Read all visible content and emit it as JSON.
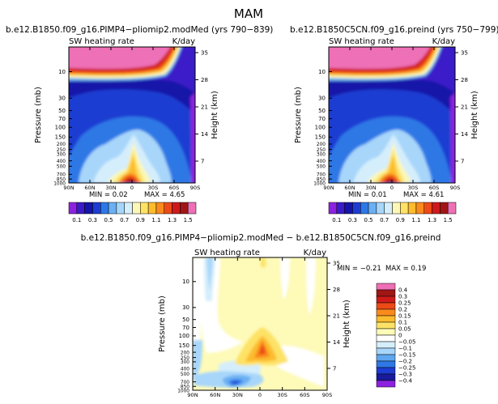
{
  "page": {
    "title": "MAM"
  },
  "colors": {
    "seq": [
      "#8c22e0",
      "#3a1bc8",
      "#1414a8",
      "#1e3cd2",
      "#2e78e6",
      "#6ab0f2",
      "#a7d6fa",
      "#d5eefc",
      "#fbf7b8",
      "#fde266",
      "#fdbb2e",
      "#f98a1c",
      "#ec4a16",
      "#ce1a1a",
      "#a01616",
      "#ee6fb6"
    ],
    "diff": [
      "#8c22e0",
      "#1a1a9c",
      "#1e3cd2",
      "#2e78e6",
      "#5ea6f0",
      "#a7d6fa",
      "#d5eefc",
      "#ffffff",
      "#fefab8",
      "#fde266",
      "#fdbb2e",
      "#f98a1c",
      "#ec4a16",
      "#ce1a1a",
      "#a01616",
      "#ee6fb6"
    ]
  },
  "chart_data": [
    {
      "id": "panel1",
      "type": "heatmap",
      "title": "b.e12.B1850.f09_g16.PIMP4−pliomip2.modMed (yrs 790−839)",
      "subtitle_left": "SW heating rate",
      "subtitle_right": "K/day",
      "ylabel": "Pressure (mb)",
      "ylabel_right": "Height (km)",
      "x_ticks": [
        "90N",
        "60N",
        "30N",
        "0",
        "30S",
        "60S",
        "90S"
      ],
      "y_ticks": [
        "10",
        "30",
        "50",
        "70",
        "100",
        "150",
        "200",
        "250",
        "300",
        "400",
        "500",
        "700",
        "850",
        "1000"
      ],
      "y_ticks_right": [
        "35",
        "28",
        "21",
        "14",
        "7"
      ],
      "min_label": "MIN = ",
      "min_value": "0.02",
      "max_label": "MAX = ",
      "max_value": "4.65",
      "colorbar_labels": [
        "0.1",
        "0.3",
        "0.5",
        "0.7",
        "0.9",
        "1.1",
        "1.3",
        "1.5"
      ]
    },
    {
      "id": "panel2",
      "type": "heatmap",
      "title": "b.e12.B1850C5CN.f09_g16.preind (yrs 750−799)",
      "subtitle_left": "SW heating rate",
      "subtitle_right": "K/day",
      "ylabel": "Pressure (mb)",
      "ylabel_right": "Height (km)",
      "x_ticks": [
        "90N",
        "60N",
        "30N",
        "0",
        "30S",
        "60S",
        "90S"
      ],
      "y_ticks": [
        "10",
        "30",
        "50",
        "70",
        "100",
        "150",
        "200",
        "250",
        "300",
        "400",
        "500",
        "700",
        "850",
        "1000"
      ],
      "y_ticks_right": [
        "35",
        "28",
        "21",
        "14",
        "7"
      ],
      "min_label": "MIN = ",
      "min_value": "0.01",
      "max_label": "MAX = ",
      "max_value": "4.61",
      "colorbar_labels": [
        "0.1",
        "0.3",
        "0.5",
        "0.7",
        "0.9",
        "1.1",
        "1.3",
        "1.5"
      ]
    },
    {
      "id": "panel3",
      "type": "heatmap",
      "title": "b.e12.B1850.f09_g16.PIMP4−pliomip2.modMed − b.e12.B1850C5CN.f09_g16.preind",
      "subtitle_left": "SW heating rate",
      "subtitle_right": "K/day",
      "ylabel": "Pressure (mb)",
      "ylabel_right": "Height (km)",
      "x_ticks": [
        "90N",
        "60N",
        "30N",
        "0",
        "30S",
        "60S",
        "90S"
      ],
      "y_ticks": [
        "10",
        "30",
        "50",
        "70",
        "100",
        "150",
        "200",
        "250",
        "300",
        "400",
        "500",
        "700",
        "850",
        "1000"
      ],
      "y_ticks_right": [
        "35",
        "28",
        "21",
        "14",
        "7"
      ],
      "min_label": "MIN = ",
      "min_value": "−0.21",
      "max_label": "MAX = ",
      "max_value": "0.19",
      "colorbar_labels": [
        "0.4",
        "0.3",
        "0.25",
        "0.2",
        "0.15",
        "0.1",
        "0.05",
        "0",
        "−0.05",
        "−0.1",
        "−0.15",
        "−0.2",
        "−0.25",
        "−0.3",
        "−0.4"
      ]
    }
  ]
}
